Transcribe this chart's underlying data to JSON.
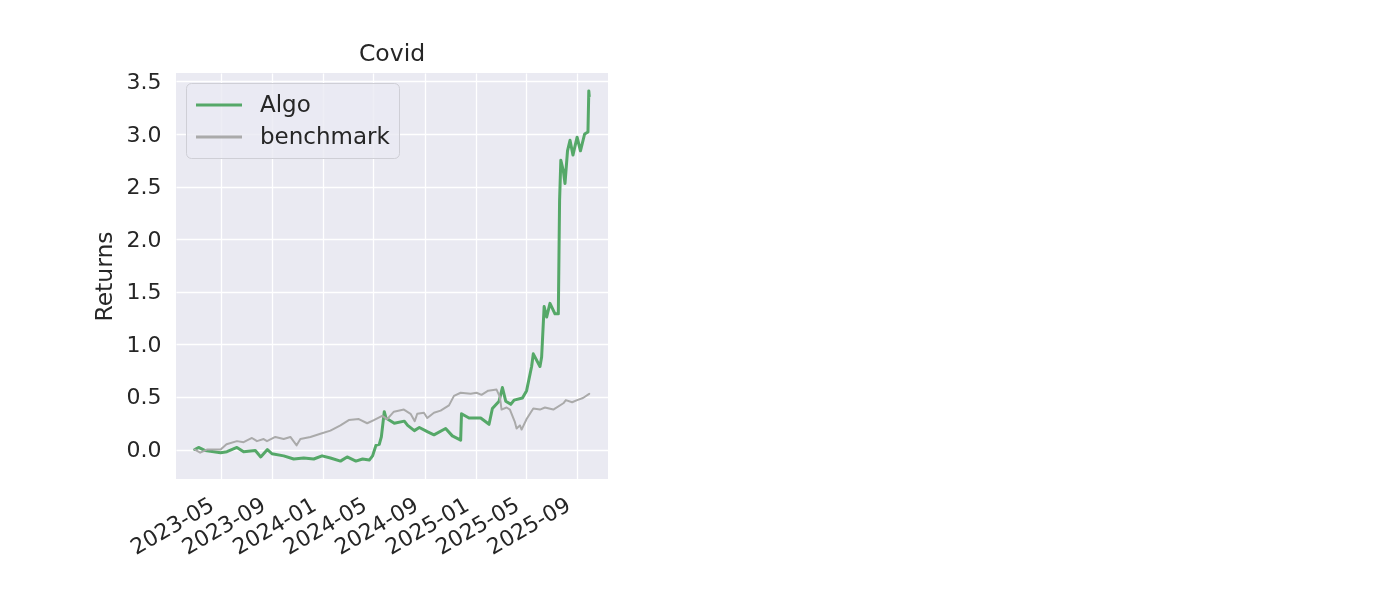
{
  "chart_data": {
    "type": "line",
    "title": "Covid",
    "ylabel": "Returns",
    "xlim": [
      "2023-01-14",
      "2025-11-14"
    ],
    "xticks": [
      "2023-05",
      "2023-09",
      "2024-01",
      "2024-05",
      "2024-09",
      "2025-01",
      "2025-05",
      "2025-09"
    ],
    "ylim": [
      -0.28,
      3.58
    ],
    "yticks": [
      {
        "value": 0,
        "label": "0.0"
      },
      0.5,
      {
        "value": 1,
        "label": "1.0"
      },
      1.5,
      {
        "value": 2,
        "label": "2.0"
      },
      2.5,
      {
        "value": 3,
        "label": "3.0"
      },
      3.5
    ],
    "grid": true,
    "legend": "top left",
    "series": [
      {
        "name": "Algo",
        "color": "#55a868",
        "x": [
          "2023-02-28",
          "2023-03-09",
          "2023-03-25",
          "2023-05-01",
          "2023-05-16",
          "2023-06-09",
          "2023-06-25",
          "2023-07-23",
          "2023-08-05",
          "2023-08-21",
          "2023-09-01",
          "2023-09-29",
          "2023-10-23",
          "2023-11-16",
          "2023-12-10",
          "2023-12-30",
          "2024-01-19",
          "2024-02-12",
          "2024-02-28",
          "2024-03-20",
          "2024-04-05",
          "2024-04-21",
          "2024-04-29",
          "2024-05-07",
          "2024-05-15",
          "2024-05-20",
          "2024-05-27",
          "2024-05-31",
          "2024-06-20",
          "2024-07-14",
          "2024-07-22",
          "2024-08-07",
          "2024-08-19",
          "2024-09-07",
          "2024-09-23",
          "2024-10-21",
          "2024-11-06",
          "2024-11-26",
          "2024-11-28",
          "2024-12-16",
          "2025-01-13",
          "2025-02-02",
          "2025-02-10",
          "2025-02-26",
          "2025-03-06",
          "2025-03-14",
          "2025-03-26",
          "2025-04-03",
          "2025-04-23",
          "2025-05-03",
          "2025-05-15",
          "2025-05-19",
          "2025-06-04",
          "2025-06-08",
          "2025-06-14",
          "2025-06-20",
          "2025-06-28",
          "2025-07-10",
          "2025-07-18",
          "2025-07-21",
          "2025-07-24",
          "2025-07-30",
          "2025-08-03",
          "2025-08-09",
          "2025-08-15",
          "2025-08-22",
          "2025-09-01",
          "2025-09-09",
          "2025-09-19",
          "2025-09-27",
          "2025-09-29",
          "2025-09-30"
        ],
        "values": [
          0.0,
          0.02,
          -0.01,
          -0.03,
          -0.02,
          0.02,
          -0.02,
          -0.01,
          -0.07,
          0.0,
          -0.04,
          -0.06,
          -0.09,
          -0.08,
          -0.09,
          -0.06,
          -0.08,
          -0.11,
          -0.07,
          -0.11,
          -0.09,
          -0.1,
          -0.06,
          0.04,
          0.05,
          0.12,
          0.36,
          0.3,
          0.25,
          0.27,
          0.23,
          0.18,
          0.21,
          0.17,
          0.14,
          0.2,
          0.13,
          0.09,
          0.34,
          0.3,
          0.3,
          0.24,
          0.39,
          0.46,
          0.59,
          0.46,
          0.43,
          0.47,
          0.49,
          0.56,
          0.79,
          0.91,
          0.79,
          0.88,
          1.36,
          1.26,
          1.39,
          1.29,
          1.29,
          2.37,
          2.75,
          2.65,
          2.53,
          2.84,
          2.94,
          2.8,
          2.97,
          2.84,
          3.0,
          3.02,
          3.41,
          3.36
        ]
      },
      {
        "name": "benchmark",
        "color": "#aaaaaa",
        "x": [
          "2023-02-28",
          "2023-03-13",
          "2023-03-29",
          "2023-05-01",
          "2023-05-15",
          "2023-06-09",
          "2023-06-25",
          "2023-07-15",
          "2023-07-27",
          "2023-08-12",
          "2023-08-20",
          "2023-09-09",
          "2023-09-29",
          "2023-10-15",
          "2023-10-30",
          "2023-11-08",
          "2023-12-02",
          "2023-12-26",
          "2024-01-19",
          "2024-02-12",
          "2024-03-03",
          "2024-03-27",
          "2024-04-16",
          "2024-05-02",
          "2024-05-22",
          "2024-06-03",
          "2024-06-19",
          "2024-07-13",
          "2024-07-29",
          "2024-08-08",
          "2024-08-14",
          "2024-08-30",
          "2024-09-07",
          "2024-09-23",
          "2024-10-09",
          "2024-10-29",
          "2024-11-10",
          "2024-11-26",
          "2024-12-20",
          "2025-01-03",
          "2025-01-15",
          "2025-01-31",
          "2025-02-20",
          "2025-02-28",
          "2025-03-04",
          "2025-03-16",
          "2025-03-24",
          "2025-04-05",
          "2025-04-09",
          "2025-04-17",
          "2025-04-21",
          "2025-05-03",
          "2025-05-19",
          "2025-06-04",
          "2025-06-16",
          "2025-07-06",
          "2025-07-30",
          "2025-08-05",
          "2025-08-20",
          "2025-09-01",
          "2025-09-15",
          "2025-09-30"
        ],
        "values": [
          0.0,
          -0.03,
          0.0,
          0.0,
          0.05,
          0.08,
          0.07,
          0.11,
          0.08,
          0.1,
          0.08,
          0.12,
          0.1,
          0.12,
          0.04,
          0.1,
          0.12,
          0.15,
          0.18,
          0.23,
          0.28,
          0.29,
          0.25,
          0.28,
          0.32,
          0.29,
          0.36,
          0.38,
          0.34,
          0.27,
          0.34,
          0.35,
          0.3,
          0.35,
          0.37,
          0.42,
          0.51,
          0.54,
          0.53,
          0.54,
          0.52,
          0.56,
          0.57,
          0.5,
          0.38,
          0.4,
          0.38,
          0.26,
          0.2,
          0.23,
          0.19,
          0.29,
          0.39,
          0.38,
          0.4,
          0.38,
          0.44,
          0.47,
          0.45,
          0.47,
          0.49,
          0.53
        ]
      }
    ]
  }
}
